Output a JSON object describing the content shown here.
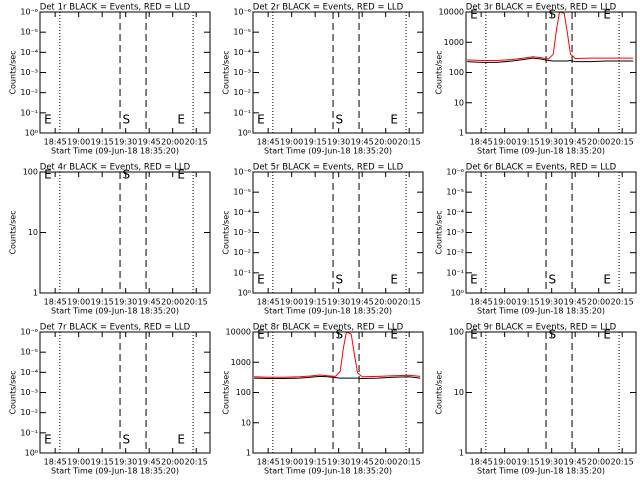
{
  "chart_data": [
    {
      "type": "line",
      "title": "Det 1r BLACK = Events, RED = LLD",
      "xlabel": "Start Time (09-Jun-18 18:35:20)",
      "ylabel": "Counts/sec",
      "xlim": [
        1115.33,
        1223.8
      ],
      "xticks": [
        {
          "value": 1125,
          "label": "18:45"
        },
        {
          "value": 1140,
          "label": "19:00"
        },
        {
          "value": 1155,
          "label": "19:15"
        },
        {
          "value": 1170,
          "label": "19:30"
        },
        {
          "value": 1185,
          "label": "19:45"
        },
        {
          "value": 1200,
          "label": "20:00"
        },
        {
          "value": 1215,
          "label": "20:15"
        }
      ],
      "log_y": true,
      "ylim": [
        1,
        1e-06
      ],
      "yticks": [
        {
          "value": 1,
          "label": "10⁰"
        },
        {
          "value": 0.1,
          "label": "10⁻¹"
        },
        {
          "value": 0.01,
          "label": "10⁻²"
        },
        {
          "value": 0.001,
          "label": "10⁻³"
        },
        {
          "value": 0.0001,
          "label": "10⁻⁴"
        },
        {
          "value": 1e-05,
          "label": "10⁻⁵"
        },
        {
          "value": 1e-06,
          "label": "10⁻⁶"
        }
      ],
      "vlines": [
        {
          "x": 1128,
          "style": "dotted"
        },
        {
          "x": 1166.4,
          "style": "dashed"
        },
        {
          "x": 1183,
          "style": "dashed"
        },
        {
          "x": 1213,
          "style": "dotted"
        }
      ],
      "annotations": [
        {
          "text": "E",
          "x": 1118
        },
        {
          "text": "S",
          "x": 1168
        },
        {
          "text": "E",
          "x": 1203
        }
      ],
      "annotation_position": "bottom",
      "series": []
    },
    {
      "type": "line",
      "title": "Det 2r BLACK = Events, RED = LLD",
      "xlabel": "Start Time (09-Jun-18 18:35:20)",
      "ylabel": "Counts/sec",
      "xlim": [
        1115.33,
        1223.8
      ],
      "xticks": [
        {
          "value": 1125,
          "label": "18:45"
        },
        {
          "value": 1140,
          "label": "19:00"
        },
        {
          "value": 1155,
          "label": "19:15"
        },
        {
          "value": 1170,
          "label": "19:30"
        },
        {
          "value": 1185,
          "label": "19:45"
        },
        {
          "value": 1200,
          "label": "20:00"
        },
        {
          "value": 1215,
          "label": "20:15"
        }
      ],
      "log_y": true,
      "ylim": [
        1,
        1e-06
      ],
      "yticks": [
        {
          "value": 1,
          "label": "10⁰"
        },
        {
          "value": 0.1,
          "label": "10⁻¹"
        },
        {
          "value": 0.01,
          "label": "10⁻²"
        },
        {
          "value": 0.001,
          "label": "10⁻³"
        },
        {
          "value": 0.0001,
          "label": "10⁻⁴"
        },
        {
          "value": 1e-05,
          "label": "10⁻⁵"
        },
        {
          "value": 1e-06,
          "label": "10⁻⁶"
        }
      ],
      "vlines": [
        {
          "x": 1128,
          "style": "dotted"
        },
        {
          "x": 1166.4,
          "style": "dashed"
        },
        {
          "x": 1183,
          "style": "dashed"
        },
        {
          "x": 1213,
          "style": "dotted"
        }
      ],
      "annotations": [
        {
          "text": "E",
          "x": 1118
        },
        {
          "text": "S",
          "x": 1168
        },
        {
          "text": "E",
          "x": 1203
        }
      ],
      "annotation_position": "bottom",
      "series": []
    },
    {
      "type": "line",
      "title": "Det 3r BLACK = Events, RED = LLD",
      "xlabel": "Start Time (09-Jun-18 18:35:20)",
      "ylabel": "Counts/sec",
      "xlim": [
        1115.33,
        1223.8
      ],
      "xticks": [
        {
          "value": 1125,
          "label": "18:45"
        },
        {
          "value": 1140,
          "label": "19:00"
        },
        {
          "value": 1155,
          "label": "19:15"
        },
        {
          "value": 1170,
          "label": "19:30"
        },
        {
          "value": 1185,
          "label": "19:45"
        },
        {
          "value": 1200,
          "label": "20:00"
        },
        {
          "value": 1215,
          "label": "20:15"
        }
      ],
      "log_y": true,
      "ylim": [
        1,
        10000
      ],
      "yticks": [
        1,
        10,
        100,
        1000,
        10000
      ],
      "vlines": [
        {
          "x": 1128,
          "style": "dotted"
        },
        {
          "x": 1166.4,
          "style": "dashed"
        },
        {
          "x": 1183,
          "style": "dashed"
        },
        {
          "x": 1213,
          "style": "dotted"
        }
      ],
      "annotations": [
        {
          "text": "E",
          "x": 1118
        },
        {
          "text": "S",
          "x": 1168
        },
        {
          "text": "E",
          "x": 1203
        }
      ],
      "annotation_position": "top",
      "x": [
        1116,
        1125,
        1135,
        1145,
        1152,
        1158,
        1163,
        1168,
        1171,
        1173,
        1175,
        1178,
        1180,
        1182,
        1185,
        1195,
        1205,
        1215,
        1222
      ],
      "series": [
        {
          "color": "#000000",
          "values": [
            230,
            215,
            215,
            240,
            270,
            300,
            280,
            250,
            240,
            240,
            240,
            240,
            240,
            250,
            230,
            230,
            240,
            240,
            240
          ]
        },
        {
          "color": "#ff0000",
          "values": [
            260,
            250,
            250,
            270,
            300,
            330,
            310,
            280,
            400,
            2500,
            10000,
            9000,
            2000,
            400,
            290,
            300,
            300,
            300,
            300
          ]
        }
      ]
    },
    {
      "type": "line",
      "title": "Det 4r BLACK = Events, RED = LLD",
      "xlabel": "Start Time (09-Jun-18 18:35:20)",
      "ylabel": "Counts/sec",
      "xlim": [
        1115.33,
        1223.8
      ],
      "xticks": [
        {
          "value": 1125,
          "label": "18:45"
        },
        {
          "value": 1140,
          "label": "19:00"
        },
        {
          "value": 1155,
          "label": "19:15"
        },
        {
          "value": 1170,
          "label": "19:30"
        },
        {
          "value": 1185,
          "label": "19:45"
        },
        {
          "value": 1200,
          "label": "20:00"
        },
        {
          "value": 1215,
          "label": "20:15"
        }
      ],
      "log_y": true,
      "ylim": [
        1,
        100
      ],
      "yticks": [
        1,
        10,
        100
      ],
      "vlines": [
        {
          "x": 1128,
          "style": "dotted"
        },
        {
          "x": 1166.4,
          "style": "dashed"
        },
        {
          "x": 1183,
          "style": "dashed"
        },
        {
          "x": 1213,
          "style": "dotted"
        }
      ],
      "annotations": [
        {
          "text": "E",
          "x": 1118
        },
        {
          "text": "S",
          "x": 1168
        },
        {
          "text": "E",
          "x": 1203
        }
      ],
      "annotation_position": "top",
      "series": []
    },
    {
      "type": "line",
      "title": "Det 5r BLACK = Events, RED = LLD",
      "xlabel": "Start Time (09-Jun-18 18:35:20)",
      "ylabel": "Counts/sec",
      "xlim": [
        1115.33,
        1223.8
      ],
      "xticks": [
        {
          "value": 1125,
          "label": "18:45"
        },
        {
          "value": 1140,
          "label": "19:00"
        },
        {
          "value": 1155,
          "label": "19:15"
        },
        {
          "value": 1170,
          "label": "19:30"
        },
        {
          "value": 1185,
          "label": "19:45"
        },
        {
          "value": 1200,
          "label": "20:00"
        },
        {
          "value": 1215,
          "label": "20:15"
        }
      ],
      "log_y": true,
      "ylim": [
        1,
        1e-06
      ],
      "yticks": [
        {
          "value": 1,
          "label": "10⁰"
        },
        {
          "value": 0.1,
          "label": "10⁻¹"
        },
        {
          "value": 0.01,
          "label": "10⁻²"
        },
        {
          "value": 0.001,
          "label": "10⁻³"
        },
        {
          "value": 0.0001,
          "label": "10⁻⁴"
        },
        {
          "value": 1e-05,
          "label": "10⁻⁵"
        },
        {
          "value": 1e-06,
          "label": "10⁻⁶"
        }
      ],
      "vlines": [
        {
          "x": 1128,
          "style": "dotted"
        },
        {
          "x": 1166.4,
          "style": "dashed"
        },
        {
          "x": 1183,
          "style": "dashed"
        },
        {
          "x": 1213,
          "style": "dotted"
        }
      ],
      "annotations": [
        {
          "text": "E",
          "x": 1118
        },
        {
          "text": "S",
          "x": 1168
        },
        {
          "text": "E",
          "x": 1203
        }
      ],
      "annotation_position": "bottom",
      "series": []
    },
    {
      "type": "line",
      "title": "Det 6r BLACK = Events, RED = LLD",
      "xlabel": "Start Time (09-Jun-18 18:35:20)",
      "ylabel": "Counts/sec",
      "xlim": [
        1115.33,
        1223.8
      ],
      "xticks": [
        {
          "value": 1125,
          "label": "18:45"
        },
        {
          "value": 1140,
          "label": "19:00"
        },
        {
          "value": 1155,
          "label": "19:15"
        },
        {
          "value": 1170,
          "label": "19:30"
        },
        {
          "value": 1185,
          "label": "19:45"
        },
        {
          "value": 1200,
          "label": "20:00"
        },
        {
          "value": 1215,
          "label": "20:15"
        }
      ],
      "log_y": true,
      "ylim": [
        1,
        1e-06
      ],
      "yticks": [
        {
          "value": 1,
          "label": "10⁰"
        },
        {
          "value": 0.1,
          "label": "10⁻¹"
        },
        {
          "value": 0.01,
          "label": "10⁻²"
        },
        {
          "value": 0.001,
          "label": "10⁻³"
        },
        {
          "value": 0.0001,
          "label": "10⁻⁴"
        },
        {
          "value": 1e-05,
          "label": "10⁻⁵"
        },
        {
          "value": 1e-06,
          "label": "10⁻⁶"
        }
      ],
      "vlines": [
        {
          "x": 1128,
          "style": "dotted"
        },
        {
          "x": 1166.4,
          "style": "dashed"
        },
        {
          "x": 1183,
          "style": "dashed"
        },
        {
          "x": 1213,
          "style": "dotted"
        }
      ],
      "annotations": [
        {
          "text": "E",
          "x": 1118
        },
        {
          "text": "S",
          "x": 1168
        },
        {
          "text": "E",
          "x": 1203
        }
      ],
      "annotation_position": "bottom",
      "series": []
    },
    {
      "type": "line",
      "title": "Det 7r BLACK = Events, RED = LLD",
      "xlabel": "Start Time (09-Jun-18 18:35:20)",
      "ylabel": "Counts/sec",
      "xlim": [
        1115.33,
        1223.8
      ],
      "xticks": [
        {
          "value": 1125,
          "label": "18:45"
        },
        {
          "value": 1140,
          "label": "19:00"
        },
        {
          "value": 1155,
          "label": "19:15"
        },
        {
          "value": 1170,
          "label": "19:30"
        },
        {
          "value": 1185,
          "label": "19:45"
        },
        {
          "value": 1200,
          "label": "20:00"
        },
        {
          "value": 1215,
          "label": "20:15"
        }
      ],
      "log_y": true,
      "ylim": [
        1,
        1e-06
      ],
      "yticks": [
        {
          "value": 1,
          "label": "10⁰"
        },
        {
          "value": 0.1,
          "label": "10⁻¹"
        },
        {
          "value": 0.01,
          "label": "10⁻²"
        },
        {
          "value": 0.001,
          "label": "10⁻³"
        },
        {
          "value": 0.0001,
          "label": "10⁻⁴"
        },
        {
          "value": 1e-05,
          "label": "10⁻⁵"
        },
        {
          "value": 1e-06,
          "label": "10⁻⁶"
        }
      ],
      "vlines": [
        {
          "x": 1128,
          "style": "dotted"
        },
        {
          "x": 1166.4,
          "style": "dashed"
        },
        {
          "x": 1183,
          "style": "dashed"
        },
        {
          "x": 1213,
          "style": "dotted"
        }
      ],
      "annotations": [
        {
          "text": "E",
          "x": 1118
        },
        {
          "text": "S",
          "x": 1168
        },
        {
          "text": "E",
          "x": 1203
        }
      ],
      "annotation_position": "bottom",
      "series": []
    },
    {
      "type": "line",
      "title": "Det 8r BLACK = Events, RED = LLD",
      "xlabel": "Start Time (09-Jun-18 18:35:20)",
      "ylabel": "Counts/sec",
      "xlim": [
        1115.33,
        1223.8
      ],
      "xticks": [
        {
          "value": 1125,
          "label": "18:45"
        },
        {
          "value": 1140,
          "label": "19:00"
        },
        {
          "value": 1155,
          "label": "19:15"
        },
        {
          "value": 1170,
          "label": "19:30"
        },
        {
          "value": 1185,
          "label": "19:45"
        },
        {
          "value": 1200,
          "label": "20:00"
        },
        {
          "value": 1215,
          "label": "20:15"
        }
      ],
      "log_y": true,
      "ylim": [
        1,
        10000
      ],
      "yticks": [
        1,
        10,
        100,
        1000,
        10000
      ],
      "vlines": [
        {
          "x": 1128,
          "style": "dotted"
        },
        {
          "x": 1166.4,
          "style": "dashed"
        },
        {
          "x": 1183,
          "style": "dashed"
        },
        {
          "x": 1213,
          "style": "dotted"
        }
      ],
      "annotations": [
        {
          "text": "E",
          "x": 1118
        },
        {
          "text": "S",
          "x": 1168
        },
        {
          "text": "E",
          "x": 1203
        }
      ],
      "annotation_position": "top",
      "x": [
        1116,
        1125,
        1135,
        1145,
        1152,
        1158,
        1163,
        1168,
        1171,
        1173,
        1175,
        1178,
        1180,
        1182,
        1185,
        1195,
        1205,
        1215,
        1222
      ],
      "series": [
        {
          "color": "#000000",
          "values": [
            300,
            290,
            290,
            300,
            320,
            340,
            330,
            310,
            300,
            300,
            300,
            300,
            300,
            300,
            290,
            300,
            320,
            330,
            300
          ]
        },
        {
          "color": "#ff0000",
          "values": [
            330,
            320,
            320,
            330,
            350,
            380,
            360,
            340,
            500,
            3000,
            10000,
            8500,
            1800,
            450,
            330,
            340,
            360,
            370,
            340
          ]
        }
      ]
    },
    {
      "type": "line",
      "title": "Det 9r BLACK = Events, RED = LLD",
      "xlabel": "Start Time (09-Jun-18 18:35:20)",
      "ylabel": "Counts/sec",
      "xlim": [
        1115.33,
        1223.8
      ],
      "xticks": [
        {
          "value": 1125,
          "label": "18:45"
        },
        {
          "value": 1140,
          "label": "19:00"
        },
        {
          "value": 1155,
          "label": "19:15"
        },
        {
          "value": 1170,
          "label": "19:30"
        },
        {
          "value": 1185,
          "label": "19:45"
        },
        {
          "value": 1200,
          "label": "20:00"
        },
        {
          "value": 1215,
          "label": "20:15"
        }
      ],
      "log_y": true,
      "ylim": [
        1,
        100
      ],
      "yticks": [
        1,
        10,
        100
      ],
      "vlines": [
        {
          "x": 1128,
          "style": "dotted"
        },
        {
          "x": 1166.4,
          "style": "dashed"
        },
        {
          "x": 1183,
          "style": "dashed"
        },
        {
          "x": 1213,
          "style": "dotted"
        }
      ],
      "annotations": [
        {
          "text": "E",
          "x": 1118
        },
        {
          "text": "S",
          "x": 1168
        },
        {
          "text": "E",
          "x": 1203
        }
      ],
      "annotation_position": "top",
      "series": []
    }
  ]
}
